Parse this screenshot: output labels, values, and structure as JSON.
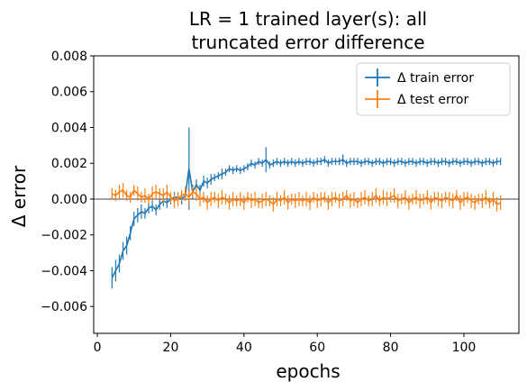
{
  "chart_data": {
    "type": "line",
    "title_lines": [
      "LR = 1 trained layer(s): all",
      "truncated error difference"
    ],
    "xlabel": "epochs",
    "ylabel": "Δ error",
    "xlim": [
      -1,
      115
    ],
    "ylim": [
      -0.0075,
      0.008
    ],
    "xticks": [
      0,
      20,
      40,
      60,
      80,
      100
    ],
    "xtick_labels": [
      "0",
      "20",
      "40",
      "60",
      "80",
      "100"
    ],
    "yticks": [
      -0.006,
      -0.004,
      -0.002,
      0.0,
      0.002,
      0.004,
      0.006,
      0.008
    ],
    "ytick_labels": [
      "−0.006",
      "−0.004",
      "−0.002",
      "0.000",
      "0.002",
      "0.004",
      "0.006",
      "0.008"
    ],
    "hline_y": 0,
    "legend_position": "upper right",
    "grid": false,
    "x_start": 4,
    "x_end": 110,
    "series": [
      {
        "name": "Δ train error",
        "color": "#1f77b4",
        "y": [
          -0.0044,
          -0.004,
          -0.0036,
          -0.0029,
          -0.0026,
          -0.0019,
          -0.0011,
          -0.0009,
          -0.0007,
          -0.0008,
          -0.0005,
          -0.0004,
          -0.0006,
          -0.0003,
          -0.0001,
          -0.0002,
          0.0,
          0.0001,
          0.0001,
          0.0,
          0.0002,
          0.0017,
          0.0004,
          0.0008,
          0.0005,
          0.001,
          0.0009,
          0.0011,
          0.0012,
          0.0013,
          0.0014,
          0.0015,
          0.0017,
          0.0016,
          0.0017,
          0.0016,
          0.0017,
          0.0018,
          0.002,
          0.0019,
          0.0021,
          0.002,
          0.0022,
          0.0019,
          0.002,
          0.0021,
          0.002,
          0.0021,
          0.002,
          0.0021,
          0.002,
          0.0021,
          0.002,
          0.0021,
          0.0021,
          0.002,
          0.0021,
          0.0021,
          0.0022,
          0.002,
          0.0021,
          0.0021,
          0.0021,
          0.0022,
          0.002,
          0.0021,
          0.0021,
          0.0021,
          0.002,
          0.0021,
          0.0021,
          0.002,
          0.0021,
          0.0021,
          0.002,
          0.0021,
          0.0021,
          0.002,
          0.0021,
          0.0021,
          0.002,
          0.0021,
          0.0021,
          0.002,
          0.0021,
          0.0021,
          0.002,
          0.0021,
          0.0021,
          0.002,
          0.0021,
          0.0021,
          0.002,
          0.0021,
          0.0021,
          0.002,
          0.0021,
          0.0021,
          0.002,
          0.0021,
          0.0021,
          0.002,
          0.0021,
          0.0021,
          0.002,
          0.0021,
          0.0021
        ],
        "err": [
          0.0006,
          0.0006,
          0.0005,
          0.0005,
          0.0005,
          0.0004,
          0.0004,
          0.0004,
          0.0004,
          0.0003,
          0.0003,
          0.0003,
          0.0003,
          0.0003,
          0.0003,
          0.0003,
          0.0003,
          0.0003,
          0.0002,
          0.0003,
          0.0003,
          0.0023,
          0.0004,
          0.0003,
          0.0003,
          0.0003,
          0.0003,
          0.0003,
          0.0002,
          0.0002,
          0.0003,
          0.0002,
          0.0002,
          0.0002,
          0.0002,
          0.0002,
          0.0002,
          0.0002,
          0.0002,
          0.0002,
          0.0002,
          0.0002,
          0.0007,
          0.0002,
          0.0002,
          0.0002,
          0.0002,
          0.0002,
          0.0002,
          0.0002,
          0.0002,
          0.0002,
          0.0002,
          0.0002,
          0.0002,
          0.0002,
          0.0002,
          0.0002,
          0.0002,
          0.0002,
          0.0002,
          0.0002,
          0.0002,
          0.0003,
          0.0002,
          0.0002,
          0.0002,
          0.0002,
          0.0002,
          0.0002,
          0.0002,
          0.0002,
          0.0002,
          0.0002,
          0.0002,
          0.0002,
          0.0002,
          0.0002,
          0.0002,
          0.0002,
          0.0002,
          0.0002,
          0.0002,
          0.0002,
          0.0002,
          0.0002,
          0.0002,
          0.0002,
          0.0002,
          0.0002,
          0.0002,
          0.0002,
          0.0002,
          0.0002,
          0.0002,
          0.0002,
          0.0002,
          0.0002,
          0.0002,
          0.0002,
          0.0002,
          0.0002,
          0.0002,
          0.0002,
          0.0002,
          0.0002,
          0.0002
        ]
      },
      {
        "name": "Δ test error",
        "color": "#ff7f0e",
        "y": [
          0.0003,
          0.0002,
          0.0004,
          0.0005,
          0.0002,
          0.0001,
          0.0005,
          0.0003,
          0.0001,
          0.0002,
          0.0,
          0.0003,
          0.0004,
          0.0003,
          0.0002,
          0.0004,
          0.0001,
          -0.0001,
          0.0,
          0.0002,
          0.0003,
          0.0001,
          0.0004,
          0.0003,
          0.0,
          0.0001,
          -0.0002,
          0.0,
          0.0001,
          -0.0001,
          0.0001,
          0.0,
          -0.0002,
          0.0,
          -0.0001,
          0.0,
          -0.0002,
          0.0001,
          -0.0001,
          0.0,
          -0.0002,
          -0.0001,
          0.0,
          -0.0001,
          -0.0003,
          0.0,
          -0.0001,
          0.0001,
          -0.0002,
          0.0,
          -0.0001,
          0.0,
          -0.0001,
          0.0,
          -0.0002,
          0.0001,
          -0.0001,
          0.0,
          0.0001,
          -0.0002,
          0.0,
          0.0001,
          -0.0001,
          0.0,
          0.0002,
          -0.0001,
          0.0,
          -0.0002,
          0.0,
          0.0001,
          -0.0001,
          0.0,
          0.0002,
          -0.0001,
          0.0001,
          0.0,
          0.0001,
          0.0002,
          -0.0001,
          0.0,
          0.0001,
          -0.0002,
          0.0,
          0.0001,
          -0.0001,
          0.0,
          0.0001,
          -0.0002,
          0.0001,
          0.0,
          -0.0001,
          0.0001,
          0.0,
          -0.0001,
          0.0002,
          -0.0002,
          0.0,
          0.0001,
          -0.0001,
          -0.0002,
          0.0,
          -0.0001,
          0.0001,
          -0.0002,
          0.0,
          -0.0003,
          -0.0002
        ],
        "err": [
          0.0003,
          0.0003,
          0.0004,
          0.0004,
          0.0003,
          0.0003,
          0.0003,
          0.0004,
          0.0003,
          0.0004,
          0.0003,
          0.0004,
          0.0004,
          0.0003,
          0.0004,
          0.0004,
          0.0003,
          0.0004,
          0.0004,
          0.0003,
          0.0004,
          0.0004,
          0.0003,
          0.0004,
          0.0004,
          0.0003,
          0.0004,
          0.0004,
          0.0003,
          0.0004,
          0.0004,
          0.0003,
          0.0004,
          0.0004,
          0.0003,
          0.0004,
          0.0004,
          0.0003,
          0.0004,
          0.0004,
          0.0003,
          0.0004,
          0.0004,
          0.0003,
          0.0004,
          0.0004,
          0.0003,
          0.0004,
          0.0004,
          0.0003,
          0.0004,
          0.0004,
          0.0003,
          0.0004,
          0.0004,
          0.0003,
          0.0004,
          0.0004,
          0.0003,
          0.0004,
          0.0004,
          0.0003,
          0.0004,
          0.0004,
          0.0003,
          0.0004,
          0.0004,
          0.0003,
          0.0004,
          0.0004,
          0.0003,
          0.0004,
          0.0004,
          0.0003,
          0.0004,
          0.0004,
          0.0003,
          0.0004,
          0.0004,
          0.0003,
          0.0004,
          0.0004,
          0.0003,
          0.0004,
          0.0004,
          0.0003,
          0.0004,
          0.0004,
          0.0003,
          0.0004,
          0.0004,
          0.0003,
          0.0004,
          0.0004,
          0.0003,
          0.0004,
          0.0004,
          0.0003,
          0.0004,
          0.0004,
          0.0003,
          0.0004,
          0.0004,
          0.0003,
          0.0004,
          0.0004,
          0.0004
        ]
      }
    ]
  }
}
